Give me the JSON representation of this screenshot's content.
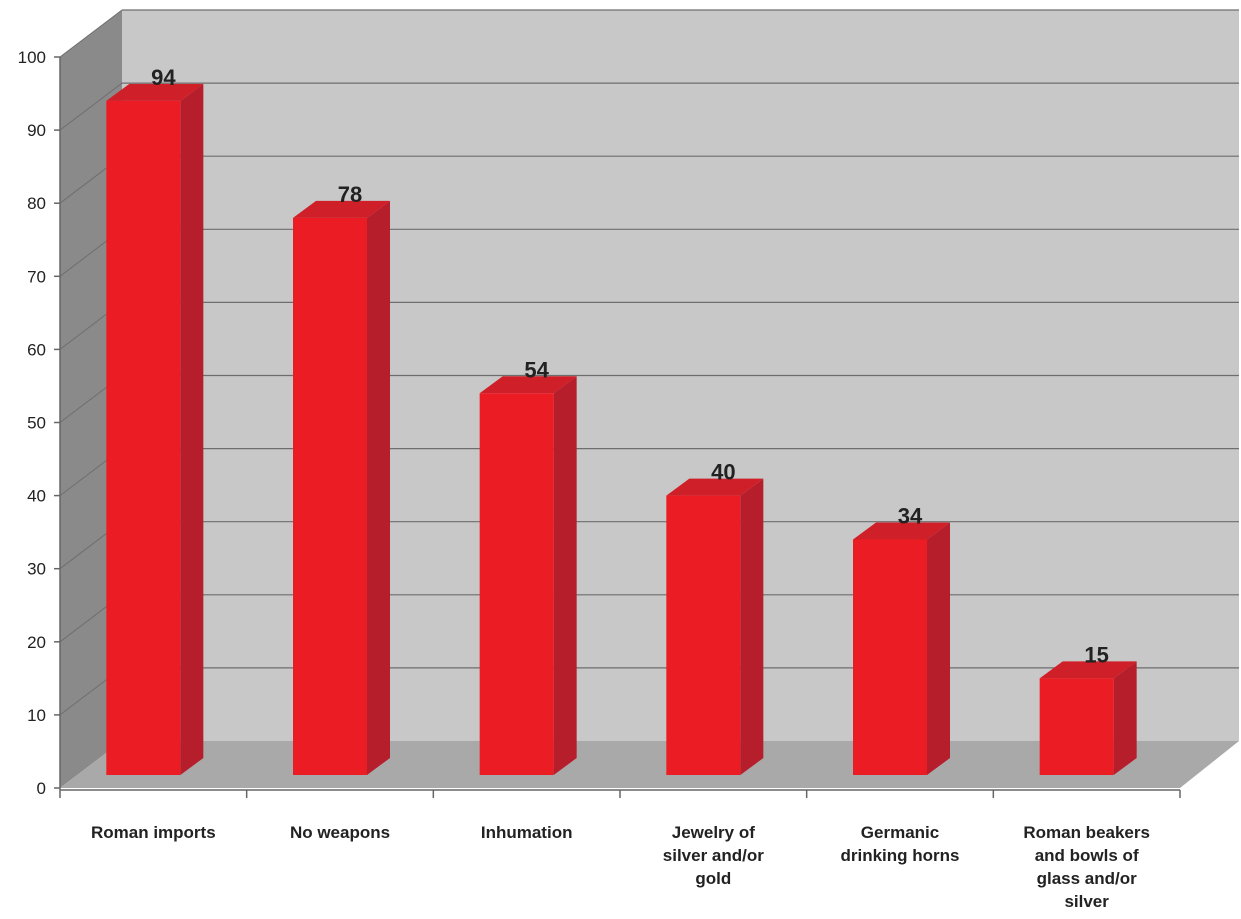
{
  "chart_data": {
    "type": "bar",
    "title": "",
    "xlabel": "",
    "ylabel": "",
    "categories": [
      "Roman imports",
      "No weapons",
      "Inhumation",
      "Jewelry of silver and/or gold",
      "Germanic drinking horns",
      "Roman beakers and bowls of glass and/or silver"
    ],
    "category_lines": [
      [
        "Roman imports"
      ],
      [
        "No weapons"
      ],
      [
        "Inhumation"
      ],
      [
        "Jewelry of",
        "silver and/or",
        "gold"
      ],
      [
        "Germanic",
        "drinking horns"
      ],
      [
        "Roman beakers",
        "and bowls of",
        "glass and/or",
        "silver"
      ]
    ],
    "values": [
      94,
      78,
      54,
      40,
      34,
      15
    ],
    "data_labels": [
      "94",
      "78",
      "54",
      "40",
      "34",
      "15"
    ],
    "y_ticks": [
      "0",
      "10",
      "20",
      "30",
      "40",
      "50",
      "60",
      "70",
      "80",
      "90",
      "100"
    ],
    "ylim": [
      0,
      100
    ],
    "grid": true,
    "legend": "none",
    "style": "3d-column",
    "colors": {
      "bar_front": "#ec1c24",
      "bar_side": "#b61e2b",
      "bar_top": "#cf1f28",
      "back_wall": "#c8c8c8",
      "side_wall": "#8a8a8a",
      "floor": "#a9a9a9",
      "gridline": "#6e6e6e"
    }
  }
}
